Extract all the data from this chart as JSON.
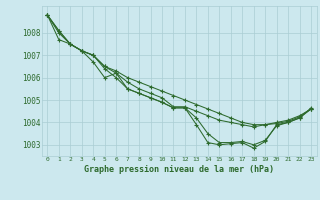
{
  "title": "Graphe pression niveau de la mer (hPa)",
  "background_color": "#cce8ee",
  "grid_color": "#aacdd4",
  "line_color": "#2d6a2d",
  "marker_color": "#2d6a2d",
  "xlim": [
    -0.5,
    23.5
  ],
  "ylim": [
    1002.5,
    1009.2
  ],
  "yticks": [
    1003,
    1004,
    1005,
    1006,
    1007,
    1008
  ],
  "xticks": [
    0,
    1,
    2,
    3,
    4,
    5,
    6,
    7,
    8,
    9,
    10,
    11,
    12,
    13,
    14,
    15,
    16,
    17,
    18,
    19,
    20,
    21,
    22,
    23
  ],
  "series": [
    [
      1008.8,
      1008.1,
      1007.5,
      1007.2,
      1007.0,
      1006.5,
      1006.3,
      1006.0,
      1005.8,
      1005.6,
      1005.4,
      1005.2,
      1005.0,
      1004.8,
      1004.6,
      1004.4,
      1004.2,
      1004.0,
      1003.9,
      1003.9,
      1004.0,
      1004.1,
      1004.3,
      1004.6
    ],
    [
      1008.8,
      1008.1,
      1007.5,
      1007.2,
      1007.0,
      1006.5,
      1006.2,
      1005.8,
      1005.5,
      1005.3,
      1005.1,
      1004.7,
      1004.7,
      1004.5,
      1004.3,
      1004.1,
      1004.0,
      1003.9,
      1003.8,
      1003.9,
      1003.95,
      1004.05,
      1004.25,
      1004.6
    ],
    [
      1008.8,
      1008.0,
      1007.5,
      1007.2,
      1006.7,
      1006.0,
      1006.2,
      1005.5,
      1005.3,
      1005.1,
      1004.9,
      1004.65,
      1004.65,
      1004.2,
      1003.5,
      1003.1,
      1003.1,
      1003.15,
      1003.0,
      1003.2,
      1003.85,
      1004.0,
      1004.2,
      1004.6
    ],
    [
      1008.8,
      1007.7,
      1007.5,
      1007.2,
      1007.0,
      1006.4,
      1006.0,
      1005.5,
      1005.3,
      1005.1,
      1004.9,
      1004.65,
      1004.65,
      1003.9,
      1003.1,
      1003.0,
      1003.05,
      1003.1,
      1002.85,
      1003.15,
      1003.9,
      1004.0,
      1004.2,
      1004.65
    ]
  ]
}
